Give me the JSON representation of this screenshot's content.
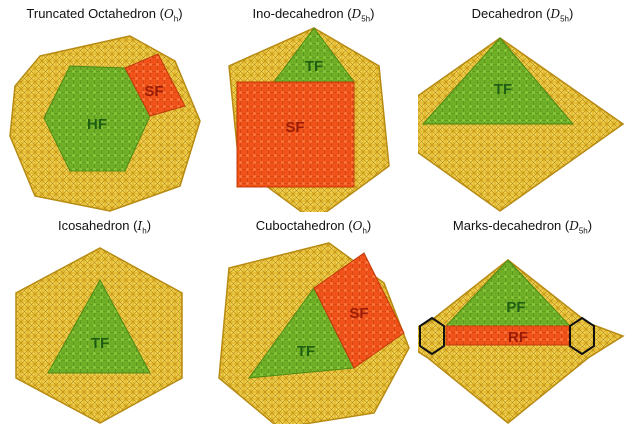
{
  "colors": {
    "cluster_gold": "#e8c23a",
    "cluster_edge": "#b78a12",
    "facet_green": "#74b22c",
    "facet_red": "#f2561e",
    "label_green": "#1f5f14",
    "label_red": "#9a1c07",
    "outline": "#111111"
  },
  "panels": [
    {
      "name": "Truncated Octahedron",
      "symbol": "O",
      "sub": "h",
      "facets": [
        "HF",
        "SF"
      ]
    },
    {
      "name": "Ino-decahedron",
      "symbol": "D",
      "sub": "5h",
      "facets": [
        "TF",
        "SF"
      ]
    },
    {
      "name": "Decahedron",
      "symbol": "D",
      "sub": "5h",
      "facets": [
        "TF"
      ]
    },
    {
      "name": "Icosahedron",
      "symbol": "I",
      "sub": "h",
      "facets": [
        "TF"
      ]
    },
    {
      "name": "Cuboctahedron",
      "symbol": "O",
      "sub": "h",
      "facets": [
        "TF",
        "SF"
      ]
    },
    {
      "name": "Marks-decahedron",
      "symbol": "D",
      "sub": "5h",
      "facets": [
        "PF",
        "RF"
      ]
    }
  ]
}
